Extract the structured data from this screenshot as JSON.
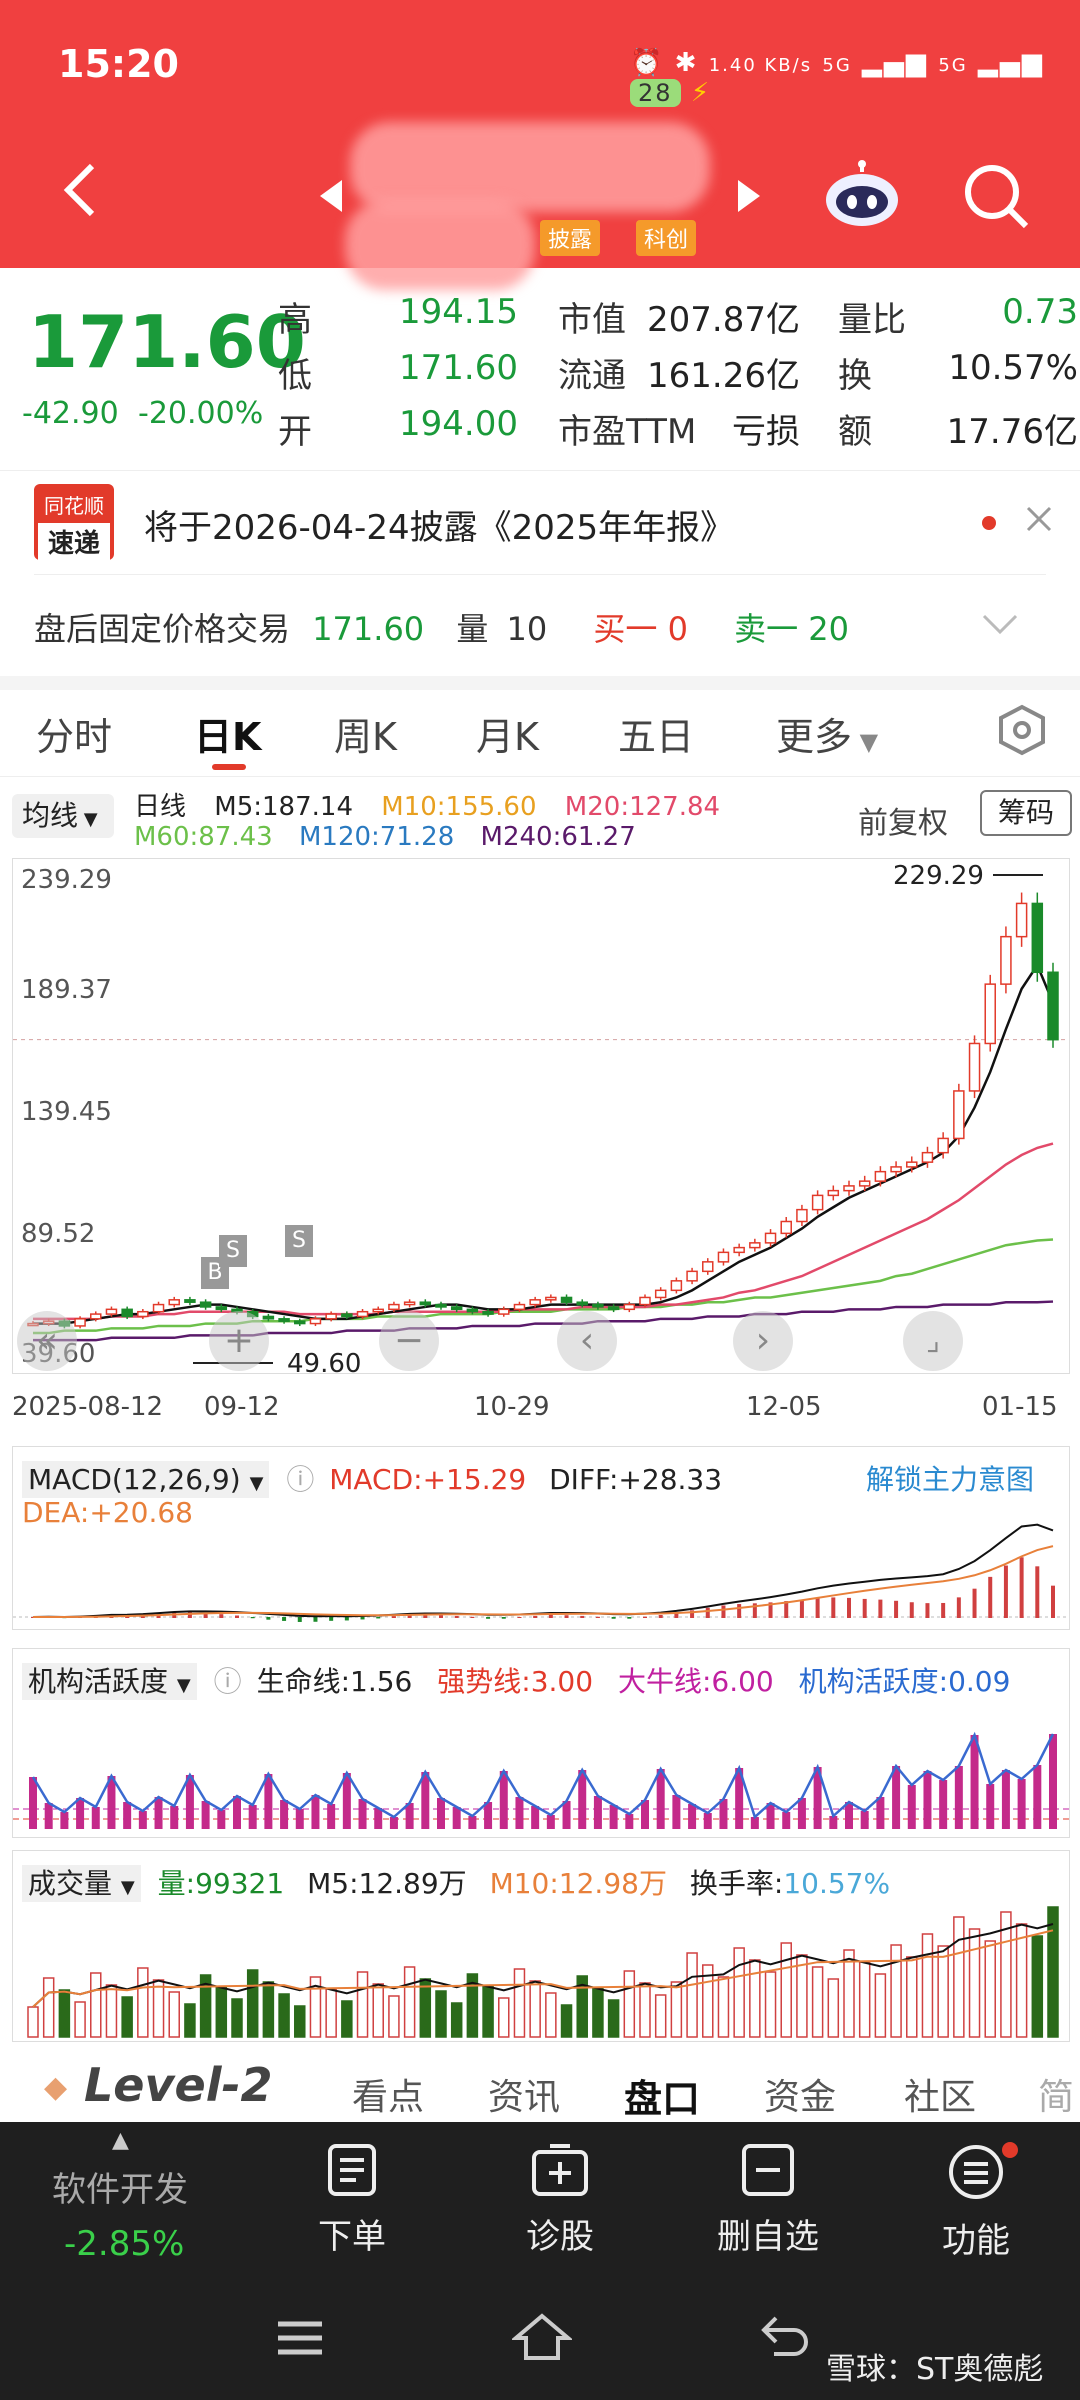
{
  "status_bar": {
    "time": "15:20",
    "speed": "1.40 KB/s",
    "net1": "5G",
    "net2": "5G",
    "battery": "28"
  },
  "header": {
    "tag1": "披露",
    "tag2": "科创"
  },
  "quote": {
    "price": "171.60",
    "change": "-42.90",
    "change_pct": "-20.00%",
    "rows": [
      {
        "l1": "高",
        "v1": "194.15",
        "l2": "市值",
        "v2": "207.87亿",
        "l3": "量比",
        "v3": "0.73"
      },
      {
        "l1": "低",
        "v1": "171.60",
        "l2": "流通",
        "v2": "161.26亿",
        "l3": "换",
        "v3": "10.57%"
      },
      {
        "l1": "开",
        "v1": "194.00",
        "l2": "市盈TTM",
        "v2": "亏损",
        "l3": "额",
        "v3": "17.76亿"
      }
    ]
  },
  "news": {
    "logo1": "同花顺",
    "logo2": "速递",
    "text": "将于2026-04-24披露《2025年年报》"
  },
  "after_hours": {
    "label": "盘后固定价格交易",
    "price": "171.60",
    "vol_label": "量",
    "vol": "10",
    "buy": "买一 0",
    "sell": "卖一 20"
  },
  "tabs": [
    "分时",
    "日K",
    "周K",
    "月K",
    "五日",
    "更多"
  ],
  "ma": {
    "selector": "均线",
    "type": "日线",
    "m5": "M5:187.14",
    "m10": "M10:155.60",
    "m20": "M20:127.84",
    "m60": "M60:87.43",
    "m120": "M120:71.28",
    "m240": "M240:61.27",
    "adjust": "前复权",
    "chip": "筹码"
  },
  "chart_data": {
    "type": "line",
    "y_ticks": [
      "239.29",
      "189.37",
      "139.45",
      "89.52",
      "39.60"
    ],
    "x_labels": [
      "2025-08-12",
      "09-12",
      "10-29",
      "12-05",
      "01-15"
    ],
    "high_label": "229.29",
    "low_label": "49.60",
    "close": [
      52,
      53,
      51,
      54,
      56,
      58,
      55,
      57,
      60,
      62,
      61,
      59,
      58,
      57,
      55,
      54,
      53,
      52,
      54,
      56,
      55,
      57,
      58,
      60,
      61,
      60,
      59,
      58,
      57,
      56,
      58,
      60,
      62,
      63,
      61,
      60,
      59,
      58,
      60,
      63,
      66,
      70,
      74,
      78,
      82,
      84,
      86,
      90,
      95,
      100,
      106,
      108,
      110,
      112,
      116,
      118,
      120,
      124,
      130,
      150,
      170,
      195,
      215,
      229,
      200,
      171.6
    ],
    "ma5": [
      52,
      52,
      52,
      53,
      54,
      55,
      56,
      56,
      57,
      58,
      59,
      60,
      60,
      59,
      58,
      57,
      56,
      55,
      54,
      54,
      54,
      55,
      56,
      57,
      58,
      59,
      60,
      60,
      59,
      58,
      58,
      58,
      59,
      60,
      60,
      60,
      60,
      60,
      60,
      60,
      61,
      63,
      66,
      70,
      74,
      78,
      81,
      84,
      88,
      92,
      97,
      101,
      105,
      108,
      111,
      114,
      117,
      120,
      124,
      131,
      143,
      158,
      176,
      193,
      203,
      187.14
    ],
    "ma20": [
      54,
      54,
      54,
      54,
      54,
      55,
      55,
      55,
      56,
      56,
      57,
      57,
      57,
      57,
      57,
      57,
      57,
      56,
      56,
      56,
      56,
      56,
      56,
      57,
      57,
      57,
      57,
      57,
      57,
      57,
      57,
      58,
      58,
      58,
      58,
      59,
      59,
      59,
      59,
      59,
      60,
      60,
      61,
      62,
      63,
      65,
      66,
      68,
      70,
      72,
      75,
      78,
      81,
      84,
      87,
      90,
      93,
      96,
      100,
      104,
      109,
      114,
      119,
      123,
      126,
      127.84
    ],
    "ma60": [
      48,
      48,
      49,
      49,
      49,
      50,
      50,
      50,
      51,
      51,
      51,
      52,
      52,
      52,
      53,
      53,
      53,
      53,
      54,
      54,
      54,
      54,
      55,
      55,
      55,
      55,
      56,
      56,
      56,
      56,
      57,
      57,
      57,
      57,
      58,
      58,
      58,
      58,
      59,
      59,
      59,
      60,
      60,
      61,
      61,
      62,
      63,
      63,
      64,
      65,
      66,
      67,
      68,
      69,
      70,
      72,
      73,
      75,
      77,
      79,
      81,
      83,
      85,
      86,
      87,
      87.43
    ],
    "ma240": [
      45,
      45,
      45,
      45,
      45,
      46,
      46,
      46,
      46,
      46,
      47,
      47,
      47,
      47,
      47,
      48,
      48,
      48,
      48,
      48,
      49,
      49,
      49,
      49,
      50,
      50,
      50,
      50,
      51,
      51,
      51,
      51,
      52,
      52,
      52,
      52,
      53,
      53,
      53,
      53,
      54,
      54,
      54,
      55,
      55,
      55,
      56,
      56,
      56,
      57,
      57,
      57,
      58,
      58,
      58,
      59,
      59,
      59,
      60,
      60,
      60,
      60,
      61,
      61,
      61,
      61.27
    ],
    "y_range": [
      39.6,
      239.29
    ]
  },
  "macd": {
    "label": "MACD(12,26,9)",
    "macd": "MACD:+15.29",
    "diff": "DIFF:+28.33",
    "dea": "DEA:+20.68",
    "unlock": "解锁主力意图"
  },
  "inst": {
    "label": "机构活跃度",
    "life": "生命线:1.56",
    "strong": "强势线:3.00",
    "bull": "大牛线:6.00",
    "active": "机构活跃度:0.09"
  },
  "volume": {
    "label": "成交量",
    "vol": "量:99321",
    "m5": "M5:12.89万",
    "m10": "M10:12.98万",
    "turnover_label": "换手率:",
    "turnover": "10.57%"
  },
  "section_tabs": [
    "Level-2",
    "看点",
    "资讯",
    "盘口",
    "资金",
    "社区",
    "简"
  ],
  "bottom": {
    "index_name": "软件开发",
    "index_pct": "-2.85%",
    "items": [
      "下单",
      "诊股",
      "删自选",
      "功能"
    ]
  },
  "watermark": "雪球：ST奥德彪",
  "colors": {
    "red": "#f04040",
    "green": "#1a9a3a"
  }
}
